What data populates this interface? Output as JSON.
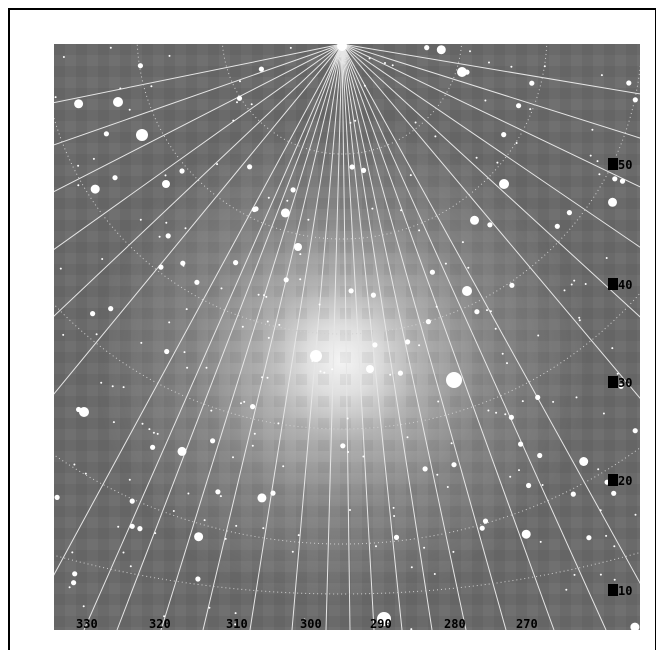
{
  "map": {
    "azimuth_labels": [
      "330",
      "320",
      "310",
      "300",
      "290",
      "280",
      "270"
    ],
    "altitude_labels": [
      "50",
      "40",
      "30",
      "20",
      "10"
    ],
    "colors": {
      "background": "#ffffff",
      "sky_base": "#6a6a6a",
      "glow_center": "#f4f4f4",
      "grid_line": "#e6e6e6",
      "star": "#ffffff",
      "label_box": "#000000",
      "label_text": "#000000"
    }
  }
}
